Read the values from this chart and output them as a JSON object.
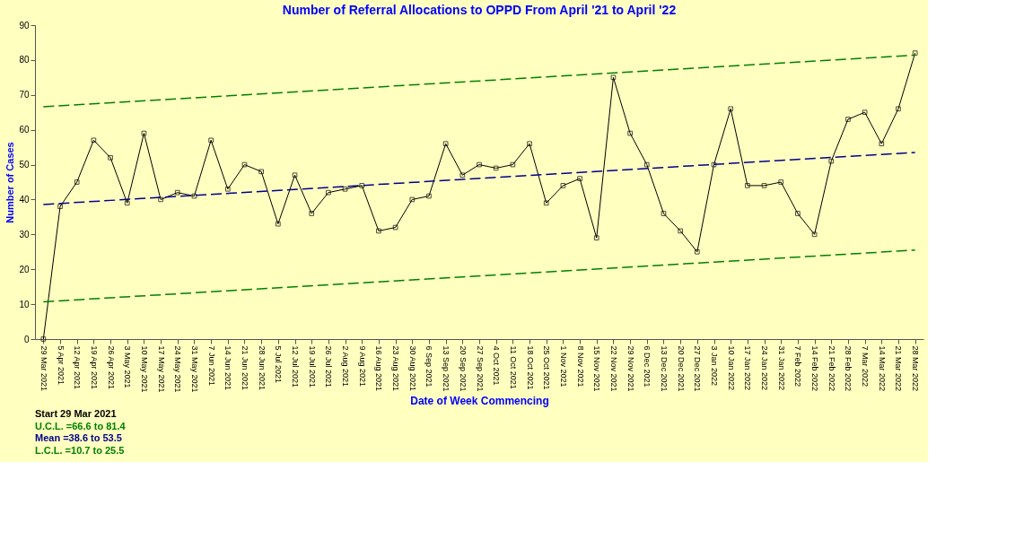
{
  "chart_data": {
    "type": "line",
    "title": "Number of Referral Allocations to OPPD From April '21 to April '22",
    "xlabel": "Date of Week Commencing",
    "ylabel": "Number of Cases",
    "categories": [
      "29 Mar 2021",
      "5 Apr 2021",
      "12 Apr 2021",
      "19 Apr 2021",
      "26 Apr 2021",
      "3 May 2021",
      "10 May 2021",
      "17 May 2021",
      "24 May 2021",
      "31 May 2021",
      "7 Jun 2021",
      "14 Jun 2021",
      "21 Jun 2021",
      "28 Jun 2021",
      "5 Jul 2021",
      "12 Jul 2021",
      "19 Jul 2021",
      "26 Jul 2021",
      "2 Aug 2021",
      "9 Aug 2021",
      "16 Aug 2021",
      "23 Aug 2021",
      "30 Aug 2021",
      "6 Sep 2021",
      "13 Sep 2021",
      "20 Sep 2021",
      "27 Sep 2021",
      "4 Oct 2021",
      "11 Oct 2021",
      "18 Oct 2021",
      "25 Oct 2021",
      "1 Nov 2021",
      "8 Nov 2021",
      "15 Nov 2021",
      "22 Nov 2021",
      "29 Nov 2021",
      "6 Dec 2021",
      "13 Dec 2021",
      "20 Dec 2021",
      "27 Dec 2021",
      "3 Jan 2022",
      "10 Jan 2022",
      "17 Jan 2022",
      "24 Jan 2022",
      "31 Jan 2022",
      "7 Feb 2022",
      "14 Feb 2022",
      "21 Feb 2022",
      "28 Feb 2022",
      "7 Mar 2022",
      "14 Mar 2022",
      "21 Mar 2022",
      "28 Mar 2022"
    ],
    "series": [
      {
        "color": "#000000",
        "marker": "square",
        "line_style": "solid",
        "values": [
          0,
          38,
          45,
          57,
          52,
          39,
          59,
          40,
          42,
          41,
          57,
          43,
          50,
          48,
          33,
          47,
          36,
          42,
          43,
          44,
          31,
          32,
          40,
          41,
          56,
          47,
          50,
          49,
          50,
          56,
          39,
          44,
          46,
          29,
          75,
          59,
          50,
          36,
          31,
          25,
          50,
          66,
          44,
          44,
          45,
          36,
          30,
          51,
          63,
          65,
          56,
          66,
          82
        ]
      },
      {
        "color": "#008000",
        "marker": "none",
        "line_style": "dashed",
        "x": [
          "29 Mar 2021",
          "28 Mar 2022"
        ],
        "values": [
          66.6,
          81.4
        ]
      },
      {
        "color": "#00008b",
        "marker": "none",
        "line_style": "dashed",
        "x": [
          "29 Mar 2021",
          "28 Mar 2022"
        ],
        "values": [
          38.6,
          53.5
        ]
      },
      {
        "color": "#008000",
        "marker": "none",
        "line_style": "dashed",
        "x": [
          "29 Mar 2021",
          "28 Mar 2022"
        ],
        "values": [
          10.7,
          25.5
        ]
      }
    ],
    "ylim": [
      0,
      90
    ],
    "yticks": [
      0,
      10,
      20,
      30,
      40,
      50,
      60,
      70,
      80,
      90
    ],
    "grid": false,
    "annotations": [
      "Start      29 Mar 2021",
      "U.C.L.     =66.6 to 81.4",
      "Mean       =38.6 to 53.5",
      "L.C.L.     =10.7 to 25.5"
    ]
  }
}
